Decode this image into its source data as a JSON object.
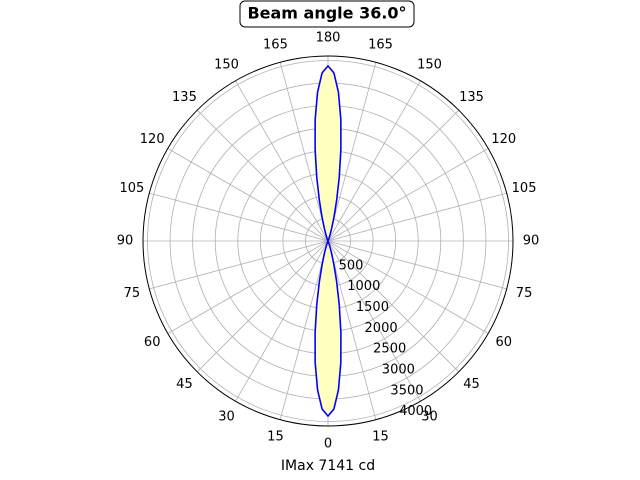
{
  "chart_data": {
    "type": "polar",
    "title": "Beam angle 36.0°",
    "xlabel": "IMax 7141 cd",
    "series": [
      {
        "color": "#0000ff",
        "fill": "#ffffc0",
        "x": [
          -30,
          -25,
          -20,
          -18,
          -16,
          -14,
          -12,
          -10,
          -8,
          -6,
          -4,
          -2,
          0,
          2,
          4,
          6,
          8,
          10,
          12,
          14,
          16,
          18,
          20,
          25,
          30,
          150,
          155,
          160,
          162,
          164,
          166,
          168,
          170,
          172,
          174,
          176,
          178,
          180,
          182,
          184,
          186,
          188,
          190,
          192,
          194,
          196,
          198,
          200,
          205,
          210
        ],
        "values": [
          0,
          7,
          69,
          150,
          299,
          547,
          922,
          1435,
          2055,
          2715,
          3310,
          3729,
          3880,
          3729,
          3310,
          2715,
          2055,
          1435,
          922,
          547,
          299,
          150,
          69,
          7,
          0,
          0,
          7,
          69,
          150,
          299,
          547,
          922,
          1435,
          2055,
          2715,
          3310,
          3729,
          3880,
          3729,
          3310,
          2715,
          2055,
          1435,
          922,
          547,
          299,
          150,
          69,
          7,
          0
        ]
      }
    ],
    "rlim": [
      0,
      4100
    ],
    "rticks": [
      500,
      1000,
      1500,
      2000,
      2500,
      3000,
      3500,
      4000
    ],
    "thetaticks": [
      0,
      15,
      30,
      45,
      60,
      75,
      90,
      105,
      120,
      135,
      150,
      165,
      180,
      {
        "value": 195,
        "label": "165"
      },
      {
        "value": 210,
        "label": "150"
      },
      {
        "value": 225,
        "label": "135"
      },
      {
        "value": 240,
        "label": "120"
      },
      {
        "value": 255,
        "label": "105"
      },
      {
        "value": 270,
        "label": "90"
      },
      {
        "value": 285,
        "label": "75"
      },
      {
        "value": 300,
        "label": "60"
      },
      {
        "value": 315,
        "label": "45"
      },
      {
        "value": 330,
        "label": "30"
      },
      {
        "value": 345,
        "label": "15"
      }
    ],
    "grid": true
  }
}
